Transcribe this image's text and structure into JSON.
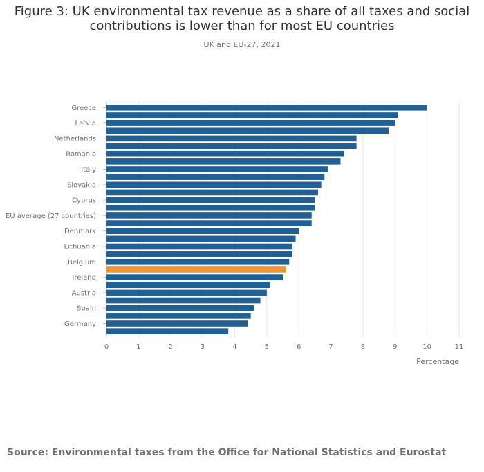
{
  "chart_data": {
    "type": "bar",
    "orientation": "horizontal",
    "title_line1": "Figure 3: UK environmental tax revenue as a share of all taxes and social",
    "title_line2": "contributions is lower than for most EU countries",
    "subtitle": "UK and EU-27, 2021",
    "xlabel": "Percentage",
    "ylabel": "",
    "xlim": [
      0,
      11
    ],
    "x_ticks": [
      "0",
      "1",
      "2",
      "3",
      "4",
      "5",
      "6",
      "7",
      "8",
      "9",
      "10",
      "11"
    ],
    "categories": [
      "Greece",
      "",
      "Latvia",
      "",
      "Netherlands",
      "",
      "Romania",
      "",
      "Italy",
      "",
      "Slovakia",
      "",
      "Cyprus",
      "",
      "EU average (27 countries)",
      "",
      "Denmark",
      "",
      "Lithuania",
      "",
      "Belgium",
      "",
      "Ireland",
      "",
      "Austria",
      "",
      "Spain",
      "",
      "Germany",
      ""
    ],
    "values": [
      10.0,
      9.1,
      9.0,
      8.8,
      7.8,
      7.8,
      7.4,
      7.3,
      6.9,
      6.8,
      6.7,
      6.6,
      6.5,
      6.5,
      6.4,
      6.4,
      6.0,
      5.9,
      5.8,
      5.8,
      5.7,
      5.6,
      5.5,
      5.1,
      5.0,
      4.8,
      4.6,
      4.5,
      4.4,
      3.8
    ],
    "highlight_index": 21,
    "colors": {
      "bar": "#206095",
      "highlight": "#F39431",
      "grid": "#E6E6E6",
      "axis_text": "#707071"
    }
  },
  "source": "Source: Environmental taxes from the Office for National Statistics and Eurostat"
}
